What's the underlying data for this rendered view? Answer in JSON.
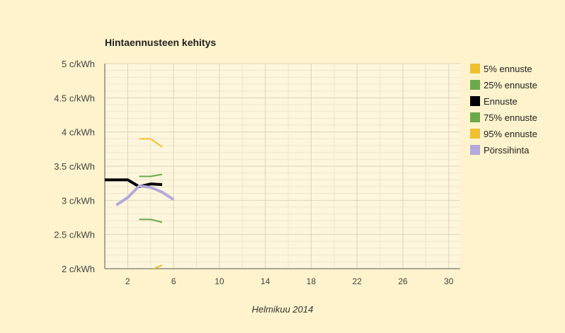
{
  "chart_data": {
    "type": "line",
    "title": "Hintaennusteen kehitys",
    "xlabel": "Helmikuu 2014",
    "ylabel": "",
    "xlim": [
      0,
      31
    ],
    "ylim": [
      2,
      5
    ],
    "x_ticks": [
      2,
      6,
      10,
      14,
      18,
      22,
      26,
      30
    ],
    "x_minor_ticks": [
      4,
      8,
      12,
      16,
      20,
      24,
      28
    ],
    "y_ticks": [
      {
        "value": 5,
        "label": "5 c/kWh"
      },
      {
        "value": 4.5,
        "label": "4.5 c/kWh"
      },
      {
        "value": 4,
        "label": "4 c/kWh"
      },
      {
        "value": 3.5,
        "label": "3.5 c/kWh"
      },
      {
        "value": 3,
        "label": "3 c/kWh"
      },
      {
        "value": 2.5,
        "label": "2.5 c/kWh"
      },
      {
        "value": 2,
        "label": "2 c/kWh"
      }
    ],
    "grid": true,
    "legend_position": "right",
    "series": [
      {
        "name": "5% ennuste",
        "color": "#f0c030",
        "width": 2,
        "x": [
          3,
          4,
          5
        ],
        "y": [
          1.95,
          1.98,
          2.05
        ]
      },
      {
        "name": "25% ennuste",
        "color": "#6aaa4a",
        "width": 2,
        "x": [
          3,
          4,
          5
        ],
        "y": [
          2.72,
          2.72,
          2.68
        ]
      },
      {
        "name": "Ennuste",
        "color": "#000000",
        "width": 4,
        "x": [
          0,
          1,
          2,
          3,
          4,
          5
        ],
        "y": [
          3.3,
          3.3,
          3.3,
          3.2,
          3.24,
          3.23
        ]
      },
      {
        "name": "75% ennuste",
        "color": "#6aaa4a",
        "width": 2,
        "x": [
          3,
          4,
          5
        ],
        "y": [
          3.35,
          3.35,
          3.38
        ]
      },
      {
        "name": "95% ennuste",
        "color": "#f0c030",
        "width": 2,
        "x": [
          3,
          4,
          5
        ],
        "y": [
          3.9,
          3.9,
          3.78
        ]
      },
      {
        "name": "Pörssihinta",
        "color": "#b4a8dc",
        "width": 4,
        "x": [
          1,
          2,
          3,
          4,
          5,
          6
        ],
        "y": [
          2.93,
          3.04,
          3.21,
          3.19,
          3.12,
          3.01
        ]
      }
    ]
  }
}
